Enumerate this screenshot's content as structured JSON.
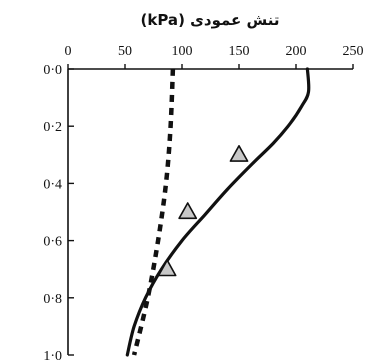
{
  "chart_data": {
    "type": "line",
    "title": "تنش عمودی (kPa)",
    "xlabel": "تنش عمودی (kPa)",
    "ylabel": "",
    "xlim": [
      0,
      250
    ],
    "ylim": [
      0,
      1.0
    ],
    "y_inverted": true,
    "x_axis_position": "top",
    "grid": false,
    "x_ticks": [
      "0",
      "50",
      "100",
      "150",
      "200",
      "250"
    ],
    "x_tick_values": [
      0,
      50,
      100,
      150,
      200,
      250
    ],
    "y_ticks": [
      "0·0",
      "0·2",
      "0·4",
      "0·6",
      "0·8",
      "1·0"
    ],
    "y_tick_values": [
      0,
      0.2,
      0.4,
      0.6,
      0.8,
      1.0
    ],
    "series": [
      {
        "style": "solid",
        "points": [
          [
            210,
            0
          ],
          [
            211,
            0.08
          ],
          [
            205,
            0.13
          ],
          [
            195,
            0.19
          ],
          [
            180,
            0.26
          ],
          [
            162,
            0.33
          ],
          [
            140,
            0.42
          ],
          [
            120,
            0.51
          ],
          [
            100,
            0.6
          ],
          [
            82,
            0.7
          ],
          [
            68,
            0.8
          ],
          [
            58,
            0.9
          ],
          [
            52,
            1.0
          ]
        ]
      },
      {
        "style": "dashed",
        "points": [
          [
            92,
            0
          ],
          [
            90,
            0.2
          ],
          [
            86,
            0.4
          ],
          [
            79,
            0.6
          ],
          [
            70,
            0.8
          ],
          [
            58,
            1.0
          ]
        ]
      },
      {
        "style": "markers",
        "marker": "triangle",
        "points": [
          [
            150,
            0.3
          ],
          [
            105,
            0.5
          ],
          [
            87,
            0.7
          ]
        ]
      }
    ]
  }
}
